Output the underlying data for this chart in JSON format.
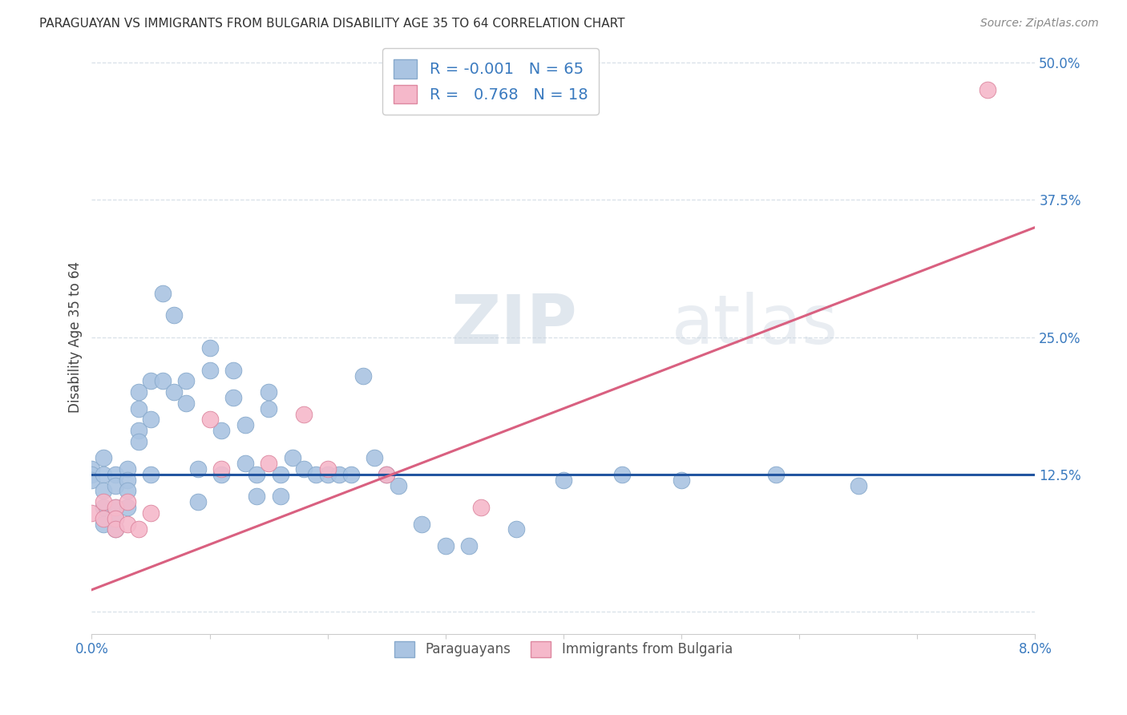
{
  "title": "PARAGUAYAN VS IMMIGRANTS FROM BULGARIA DISABILITY AGE 35 TO 64 CORRELATION CHART",
  "source": "Source: ZipAtlas.com",
  "ylabel": "Disability Age 35 to 64",
  "x_min": 0.0,
  "x_max": 0.08,
  "y_min": -0.02,
  "y_max": 0.52,
  "x_ticks": [
    0.0,
    0.01,
    0.02,
    0.03,
    0.04,
    0.05,
    0.06,
    0.07,
    0.08
  ],
  "y_ticks": [
    0.0,
    0.125,
    0.25,
    0.375,
    0.5
  ],
  "legend1_R": "-0.001",
  "legend1_N": "65",
  "legend2_R": "0.768",
  "legend2_N": "18",
  "blue_color": "#aac4e2",
  "pink_color": "#f5b8ca",
  "blue_line_color": "#2255a0",
  "pink_line_color": "#d96080",
  "grid_color": "#d8e0e8",
  "watermark_zip": "ZIP",
  "watermark_atlas": "atlas",
  "paraguayans_x": [
    0.0,
    0.0,
    0.0,
    0.001,
    0.001,
    0.001,
    0.001,
    0.001,
    0.002,
    0.002,
    0.002,
    0.002,
    0.002,
    0.003,
    0.003,
    0.003,
    0.003,
    0.004,
    0.004,
    0.004,
    0.004,
    0.005,
    0.005,
    0.005,
    0.006,
    0.006,
    0.007,
    0.007,
    0.008,
    0.008,
    0.009,
    0.009,
    0.01,
    0.01,
    0.011,
    0.011,
    0.012,
    0.012,
    0.013,
    0.013,
    0.014,
    0.014,
    0.015,
    0.015,
    0.016,
    0.016,
    0.017,
    0.018,
    0.019,
    0.02,
    0.021,
    0.022,
    0.023,
    0.024,
    0.025,
    0.026,
    0.028,
    0.03,
    0.032,
    0.036,
    0.04,
    0.045,
    0.05,
    0.058,
    0.065
  ],
  "paraguayans_y": [
    0.13,
    0.125,
    0.12,
    0.14,
    0.125,
    0.11,
    0.095,
    0.08,
    0.125,
    0.115,
    0.095,
    0.085,
    0.075,
    0.13,
    0.12,
    0.11,
    0.095,
    0.2,
    0.185,
    0.165,
    0.155,
    0.21,
    0.175,
    0.125,
    0.29,
    0.21,
    0.27,
    0.2,
    0.21,
    0.19,
    0.13,
    0.1,
    0.24,
    0.22,
    0.165,
    0.125,
    0.22,
    0.195,
    0.17,
    0.135,
    0.125,
    0.105,
    0.2,
    0.185,
    0.125,
    0.105,
    0.14,
    0.13,
    0.125,
    0.125,
    0.125,
    0.125,
    0.215,
    0.14,
    0.125,
    0.115,
    0.08,
    0.06,
    0.06,
    0.075,
    0.12,
    0.125,
    0.12,
    0.125,
    0.115
  ],
  "bulgaria_x": [
    0.0,
    0.001,
    0.001,
    0.002,
    0.002,
    0.002,
    0.003,
    0.003,
    0.004,
    0.005,
    0.01,
    0.011,
    0.015,
    0.018,
    0.02,
    0.025,
    0.033,
    0.076
  ],
  "bulgaria_y": [
    0.09,
    0.1,
    0.085,
    0.095,
    0.085,
    0.075,
    0.1,
    0.08,
    0.075,
    0.09,
    0.175,
    0.13,
    0.135,
    0.18,
    0.13,
    0.125,
    0.095,
    0.475
  ],
  "blue_line_y0": 0.125,
  "blue_line_y1": 0.125,
  "pink_line_y0": 0.02,
  "pink_line_y1": 0.35
}
